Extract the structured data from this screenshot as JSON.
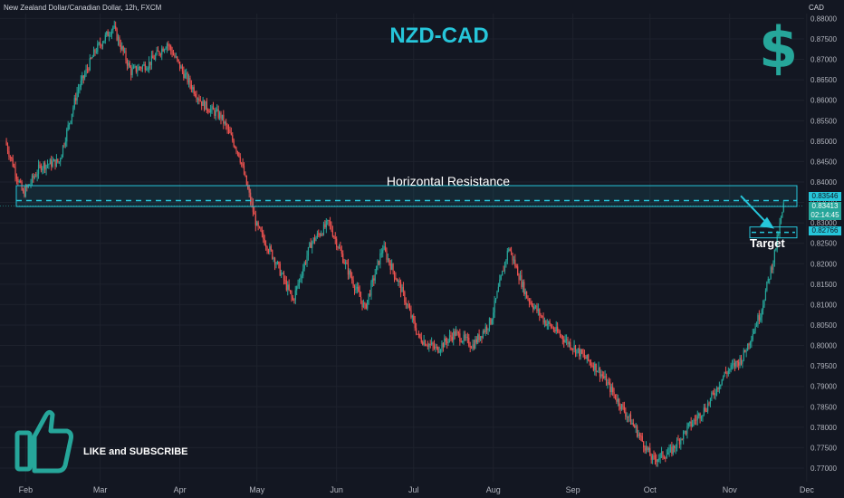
{
  "header": {
    "symbol_info": "New Zealand Dollar/Canadian Dollar, 12h, FXCM",
    "title": "NZD-CAD",
    "currency": "CAD"
  },
  "annotations": {
    "resistance_label": "Horizontal Resistance",
    "target_label": "Target",
    "cta": "LIKE and SUBSCRIBE"
  },
  "icons": {
    "thumb": "thumbs-up-icon",
    "dollar": "dollar-sign-icon"
  },
  "colors": {
    "background": "#131722",
    "up": "#26a69a",
    "down": "#ef5350",
    "accent": "#26c6da"
  },
  "price_tags": {
    "resistance": "0.83546",
    "last": "0.83413",
    "countdown": "02:14:45",
    "target": "0.82766"
  },
  "chart_data": {
    "type": "candlestick",
    "title": "NZD-CAD",
    "x_ticks": [
      "Feb",
      "Mar",
      "Apr",
      "May",
      "Jun",
      "Jul",
      "Aug",
      "Sep",
      "Oct",
      "Nov",
      "Dec"
    ],
    "y_ticks": [
      "0.88000",
      "0.87500",
      "0.87000",
      "0.86500",
      "0.86000",
      "0.85500",
      "0.85000",
      "0.84500",
      "0.84000",
      "0.83500",
      "0.83000",
      "0.82500",
      "0.82000",
      "0.81500",
      "0.81000",
      "0.80500",
      "0.80000",
      "0.79500",
      "0.79000",
      "0.78500",
      "0.78000",
      "0.77500",
      "0.77000"
    ],
    "ylim": [
      0.768,
      0.8812
    ],
    "resistance_zone": [
      0.834,
      0.8391
    ],
    "resistance_level": 0.83546,
    "target_level": 0.82766,
    "last_price": 0.83413,
    "approx_closes": [
      {
        "date": "2024-01-24",
        "close": 0.85
      },
      {
        "date": "2024-01-31",
        "close": 0.837
      },
      {
        "date": "2024-02-07",
        "close": 0.844
      },
      {
        "date": "2024-02-14",
        "close": 0.845
      },
      {
        "date": "2024-02-21",
        "close": 0.862
      },
      {
        "date": "2024-02-28",
        "close": 0.872
      },
      {
        "date": "2024-03-06",
        "close": 0.878
      },
      {
        "date": "2024-03-13",
        "close": 0.867
      },
      {
        "date": "2024-03-20",
        "close": 0.869
      },
      {
        "date": "2024-03-27",
        "close": 0.874
      },
      {
        "date": "2024-04-03",
        "close": 0.866
      },
      {
        "date": "2024-04-10",
        "close": 0.859
      },
      {
        "date": "2024-04-17",
        "close": 0.856
      },
      {
        "date": "2024-04-24",
        "close": 0.847
      },
      {
        "date": "2024-05-01",
        "close": 0.829
      },
      {
        "date": "2024-05-08",
        "close": 0.821
      },
      {
        "date": "2024-05-15",
        "close": 0.811
      },
      {
        "date": "2024-05-22",
        "close": 0.825
      },
      {
        "date": "2024-05-29",
        "close": 0.83
      },
      {
        "date": "2024-06-05",
        "close": 0.819
      },
      {
        "date": "2024-06-12",
        "close": 0.809
      },
      {
        "date": "2024-06-19",
        "close": 0.824
      },
      {
        "date": "2024-06-26",
        "close": 0.814
      },
      {
        "date": "2024-07-03",
        "close": 0.802
      },
      {
        "date": "2024-07-10",
        "close": 0.799
      },
      {
        "date": "2024-07-17",
        "close": 0.803
      },
      {
        "date": "2024-07-24",
        "close": 0.8
      },
      {
        "date": "2024-07-31",
        "close": 0.806
      },
      {
        "date": "2024-08-07",
        "close": 0.824
      },
      {
        "date": "2024-08-14",
        "close": 0.812
      },
      {
        "date": "2024-08-21",
        "close": 0.806
      },
      {
        "date": "2024-08-28",
        "close": 0.802
      },
      {
        "date": "2024-09-04",
        "close": 0.798
      },
      {
        "date": "2024-09-11",
        "close": 0.794
      },
      {
        "date": "2024-09-18",
        "close": 0.787
      },
      {
        "date": "2024-09-25",
        "close": 0.78
      },
      {
        "date": "2024-10-02",
        "close": 0.772
      },
      {
        "date": "2024-10-09",
        "close": 0.774
      },
      {
        "date": "2024-10-16",
        "close": 0.78
      },
      {
        "date": "2024-10-23",
        "close": 0.785
      },
      {
        "date": "2024-10-30",
        "close": 0.793
      },
      {
        "date": "2024-11-06",
        "close": 0.797
      },
      {
        "date": "2024-11-13",
        "close": 0.808
      },
      {
        "date": "2024-11-18",
        "close": 0.821
      },
      {
        "date": "2024-11-22",
        "close": 0.8341
      }
    ]
  }
}
